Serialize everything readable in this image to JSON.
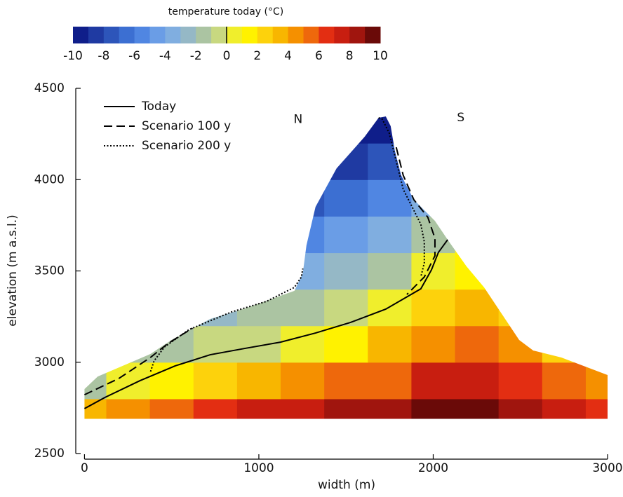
{
  "chart_data": {
    "type": "contour",
    "xlabel": "width (m)",
    "ylabel": "elevation (m a.s.l.)",
    "xlim": [
      -50,
      3000
    ],
    "ylim": [
      2500,
      4500
    ],
    "xticks": [
      0,
      1000,
      2000,
      3000
    ],
    "yticks": [
      2500,
      3000,
      3500,
      4000,
      4500
    ],
    "legend": "upper left",
    "colorbar": {
      "title": "temperature today (°C)",
      "lim": [
        -10,
        10
      ],
      "ticks": [
        -10,
        -8,
        -6,
        -4,
        -2,
        0,
        2,
        4,
        6,
        8,
        10
      ],
      "reference_line": 0,
      "colors": [
        "#0f1e8a",
        "#1f3aa2",
        "#2d55ba",
        "#3c6fd2",
        "#5086e2",
        "#6a9de6",
        "#80aee0",
        "#95b8c6",
        "#abc4a2",
        "#c8d880",
        "#f0ee2c",
        "#fff200",
        "#fdd20c",
        "#f8b600",
        "#f59000",
        "#ee680c",
        "#e32e12",
        "#c81e10",
        "#a0150e",
        "#6a0a08"
      ]
    },
    "surface": {
      "x": [
        0,
        0,
        76,
        378,
        499,
        721,
        922,
        1204,
        1252,
        1273,
        1325,
        1446,
        1607,
        1687,
        1728,
        1756,
        1780,
        1816,
        1889,
        2010,
        2083,
        2191,
        2292,
        2372,
        2493,
        2574,
        2735,
        3000,
        3000
      ],
      "y": [
        2690,
        2853,
        2922,
        3045,
        3122,
        3237,
        3295,
        3391,
        3487,
        3640,
        3851,
        4062,
        4235,
        4339,
        4346,
        4293,
        4158,
        4024,
        3890,
        3774,
        3671,
        3525,
        3410,
        3295,
        3122,
        3064,
        3026,
        2930,
        2690
      ]
    },
    "field": {
      "x": [
        0,
        250,
        500,
        750,
        1000,
        1250,
        1500,
        1750,
        2000,
        2250,
        2500,
        2750,
        3000
      ],
      "y": [
        2700,
        2900,
        3100,
        3300,
        3500,
        3700,
        3900,
        4100,
        4300
      ],
      "values": [
        [
          3.3,
          4.8,
          5.8,
          6.8,
          7.3,
          7.8,
          8.3,
          8.9,
          9.4,
          9.4,
          8.9,
          7.9,
          6.9
        ],
        [
          -1.5,
          0.8,
          1.6,
          2.9,
          3.6,
          4.3,
          5.1,
          5.9,
          7.2,
          7.5,
          6.7,
          5.2,
          4.1
        ],
        [
          null,
          -1.5,
          -1.2,
          -0.5,
          -0.1,
          0.7,
          1.8,
          3.0,
          4.9,
          5.6,
          4.4,
          2.6,
          1.4
        ],
        [
          null,
          null,
          null,
          -2.4,
          -2.0,
          -1.5,
          -0.9,
          0.1,
          2.7,
          3.8,
          2.2,
          0.4,
          null
        ],
        [
          null,
          null,
          null,
          null,
          -3.9,
          -3.4,
          -2.8,
          -1.9,
          0.4,
          1.9,
          0.2,
          null,
          null
        ],
        [
          null,
          null,
          null,
          null,
          null,
          -5.2,
          -4.7,
          -3.8,
          -1.5,
          0.3,
          null,
          null,
          null
        ],
        [
          null,
          null,
          null,
          null,
          null,
          -7.2,
          -6.6,
          -5.7,
          -3.4,
          null,
          null,
          null,
          null
        ],
        [
          null,
          null,
          null,
          null,
          null,
          null,
          -8.5,
          -7.6,
          null,
          null,
          null,
          null,
          null
        ],
        [
          null,
          null,
          null,
          null,
          null,
          null,
          -9.8,
          -9.5,
          null,
          null,
          null,
          null,
          null
        ]
      ]
    },
    "annotations": [
      {
        "text": "N",
        "x": 1225,
        "y": 4330
      },
      {
        "text": "S",
        "x": 2158,
        "y": 4338
      }
    ],
    "series": [
      {
        "name": "Today",
        "color": "#000000",
        "dash": "solid",
        "x": [
          0,
          117,
          318,
          520,
          721,
          922,
          1124,
          1325,
          1526,
          1728,
          1929,
          1990,
          2030,
          2083
        ],
        "y": [
          2746,
          2807,
          2899,
          2980,
          3041,
          3076,
          3110,
          3160,
          3218,
          3291,
          3402,
          3506,
          3602,
          3671
        ]
      },
      {
        "name": "Scenario 100 y",
        "color": "#000000",
        "dash": "dashed",
        "x": [
          0,
          197,
          378,
          479,
          620,
          null,
          1788,
          1828,
          1889,
          1969,
          2010,
          2010,
          1949,
          1849
        ],
        "y": [
          2822,
          2911,
          3026,
          3103,
          3187,
          null,
          4177,
          4024,
          3890,
          3794,
          3679,
          3583,
          3467,
          3371
        ]
      },
      {
        "name": "Scenario 200 y",
        "color": "#000000",
        "dash": "dotted",
        "x": [
          379,
          399,
          459,
          600,
          842,
          1043,
          1204,
          1244,
          1252,
          null,
          1687,
          1708,
          1748,
          1788,
          1828,
          1889,
          1929,
          1949,
          1949,
          1929
        ],
        "y": [
          2949,
          3007,
          3084,
          3179,
          3275,
          3333,
          3410,
          3467,
          3513,
          null,
          4339,
          4331,
          4254,
          4101,
          3947,
          3832,
          3755,
          3659,
          3544,
          3467
        ]
      }
    ]
  }
}
